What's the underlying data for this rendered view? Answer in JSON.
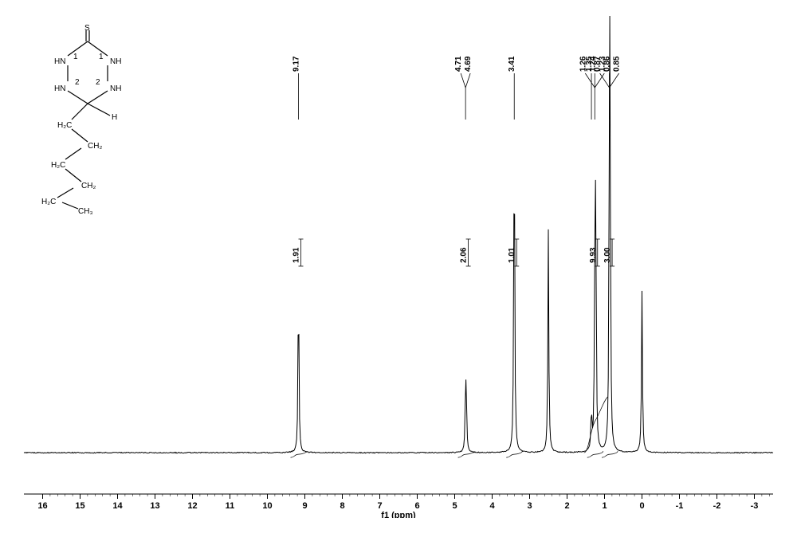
{
  "chart": {
    "type": "nmr-spectrum",
    "background_color": "#ffffff",
    "line_color": "#000000",
    "xlabel": "f1 (ppm)",
    "xlim": [
      16.5,
      -3.5
    ],
    "yrange": [
      0,
      100
    ],
    "baseline_y": 87,
    "x_ticks": [
      16,
      15,
      14,
      13,
      12,
      11,
      10,
      9,
      8,
      7,
      6,
      5,
      4,
      3,
      2,
      1,
      0,
      -1,
      -2,
      -3
    ],
    "peaks": [
      {
        "ppm": 9.17,
        "height": 42,
        "labels": [
          "9.17"
        ]
      },
      {
        "ppm": 4.71,
        "height": 14,
        "labels": [
          "4.71",
          "4.69"
        ]
      },
      {
        "ppm": 4.69,
        "height": 12,
        "labels": []
      },
      {
        "ppm": 3.41,
        "height": 85,
        "labels": [
          "3.41"
        ]
      },
      {
        "ppm": 2.5,
        "height": 55,
        "labels": []
      },
      {
        "ppm": 1.35,
        "height": 10,
        "labels": [
          "1.35"
        ]
      },
      {
        "ppm": 1.26,
        "height": 32,
        "labels": [
          "1.26",
          "1.24",
          "1.23"
        ]
      },
      {
        "ppm": 1.24,
        "height": 36,
        "labels": []
      },
      {
        "ppm": 1.23,
        "height": 28,
        "labels": []
      },
      {
        "ppm": 0.87,
        "height": 45,
        "labels": [
          "0.87",
          "0.86",
          "0.85"
        ]
      },
      {
        "ppm": 0.86,
        "height": 48,
        "labels": []
      },
      {
        "ppm": 0.85,
        "height": 42,
        "labels": []
      },
      {
        "ppm": 0.0,
        "height": 40,
        "labels": []
      }
    ],
    "integrals": [
      {
        "ppm": 9.17,
        "value": "1.91"
      },
      {
        "ppm": 4.7,
        "value": "2.06"
      },
      {
        "ppm": 3.41,
        "value": "1.01"
      },
      {
        "ppm": 1.25,
        "value": "9.93"
      },
      {
        "ppm": 0.86,
        "value": "3.00"
      }
    ]
  },
  "structure": {
    "ring_labels": [
      "1",
      "1",
      "2",
      "2"
    ],
    "atoms": [
      "S",
      "HN",
      "NH",
      "HN",
      "NH",
      "H",
      "H₂C",
      "CH₂",
      "H₂C",
      "CH₂",
      "H₂C",
      "CH₃"
    ]
  }
}
